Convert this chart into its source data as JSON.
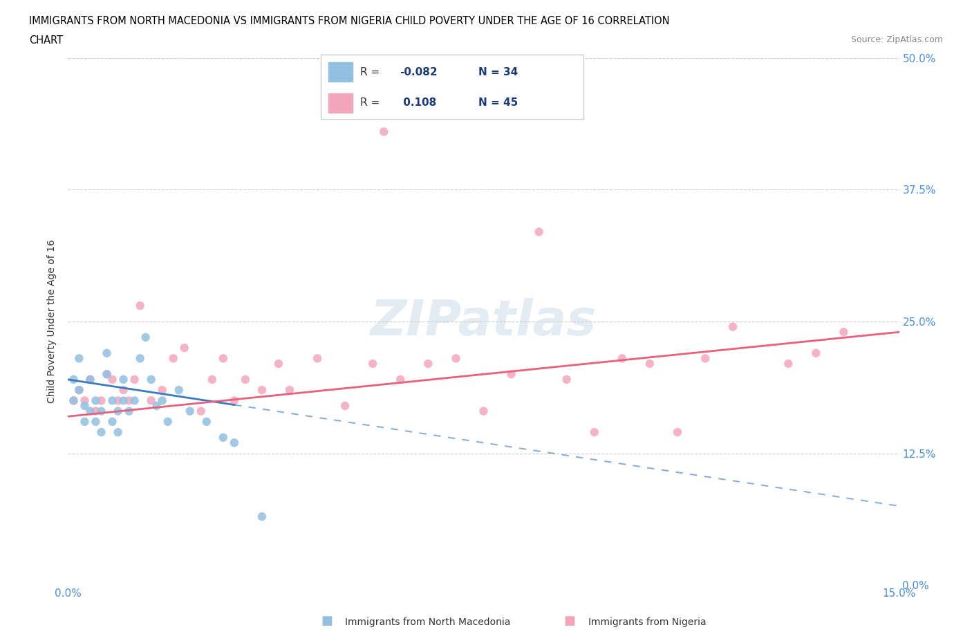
{
  "title_line1": "IMMIGRANTS FROM NORTH MACEDONIA VS IMMIGRANTS FROM NIGERIA CHILD POVERTY UNDER THE AGE OF 16 CORRELATION",
  "title_line2": "CHART",
  "source_text": "Source: ZipAtlas.com",
  "ylabel": "Child Poverty Under the Age of 16",
  "xlim": [
    0.0,
    0.15
  ],
  "ylim": [
    0.0,
    0.5
  ],
  "yticks": [
    0.0,
    0.125,
    0.25,
    0.375,
    0.5
  ],
  "ytick_labels": [
    "0.0%",
    "12.5%",
    "25.0%",
    "37.5%",
    "50.0%"
  ],
  "xticks": [
    0.0,
    0.15
  ],
  "xtick_labels": [
    "0.0%",
    "15.0%"
  ],
  "color_blue": "#92c0e0",
  "color_pink": "#f4a7bc",
  "line_color_blue": "#3a7abf",
  "line_color_pink": "#e8607a",
  "legend_text_color": "#1a3a7a",
  "axis_color": "#4a90d9",
  "blue_scatter_x": [
    0.001,
    0.001,
    0.002,
    0.002,
    0.003,
    0.003,
    0.004,
    0.004,
    0.005,
    0.005,
    0.006,
    0.006,
    0.007,
    0.007,
    0.008,
    0.008,
    0.009,
    0.009,
    0.01,
    0.01,
    0.011,
    0.012,
    0.013,
    0.014,
    0.015,
    0.016,
    0.017,
    0.018,
    0.02,
    0.022,
    0.025,
    0.028,
    0.03,
    0.035
  ],
  "blue_scatter_y": [
    0.195,
    0.175,
    0.215,
    0.185,
    0.155,
    0.17,
    0.165,
    0.195,
    0.155,
    0.175,
    0.145,
    0.165,
    0.2,
    0.22,
    0.155,
    0.175,
    0.145,
    0.165,
    0.175,
    0.195,
    0.165,
    0.175,
    0.215,
    0.235,
    0.195,
    0.17,
    0.175,
    0.155,
    0.185,
    0.165,
    0.155,
    0.14,
    0.135,
    0.065
  ],
  "pink_scatter_x": [
    0.001,
    0.002,
    0.003,
    0.004,
    0.005,
    0.006,
    0.007,
    0.008,
    0.009,
    0.01,
    0.011,
    0.012,
    0.013,
    0.015,
    0.017,
    0.019,
    0.021,
    0.024,
    0.026,
    0.028,
    0.03,
    0.032,
    0.035,
    0.038,
    0.04,
    0.045,
    0.05,
    0.055,
    0.057,
    0.06,
    0.065,
    0.07,
    0.075,
    0.08,
    0.085,
    0.09,
    0.095,
    0.1,
    0.105,
    0.11,
    0.115,
    0.12,
    0.13,
    0.135,
    0.14
  ],
  "pink_scatter_y": [
    0.175,
    0.185,
    0.175,
    0.195,
    0.165,
    0.175,
    0.2,
    0.195,
    0.175,
    0.185,
    0.175,
    0.195,
    0.265,
    0.175,
    0.185,
    0.215,
    0.225,
    0.165,
    0.195,
    0.215,
    0.175,
    0.195,
    0.185,
    0.21,
    0.185,
    0.215,
    0.17,
    0.21,
    0.43,
    0.195,
    0.21,
    0.215,
    0.165,
    0.2,
    0.335,
    0.195,
    0.145,
    0.215,
    0.21,
    0.145,
    0.215,
    0.245,
    0.21,
    0.22,
    0.24
  ],
  "blue_line_x_solid_start": 0.0,
  "blue_line_x_solid_end": 0.03,
  "blue_line_x_dash_start": 0.03,
  "blue_line_x_dash_end": 0.15,
  "blue_line_y_at_0": 0.195,
  "blue_line_y_at_015": 0.075,
  "pink_line_y_at_0": 0.16,
  "pink_line_y_at_015": 0.24
}
